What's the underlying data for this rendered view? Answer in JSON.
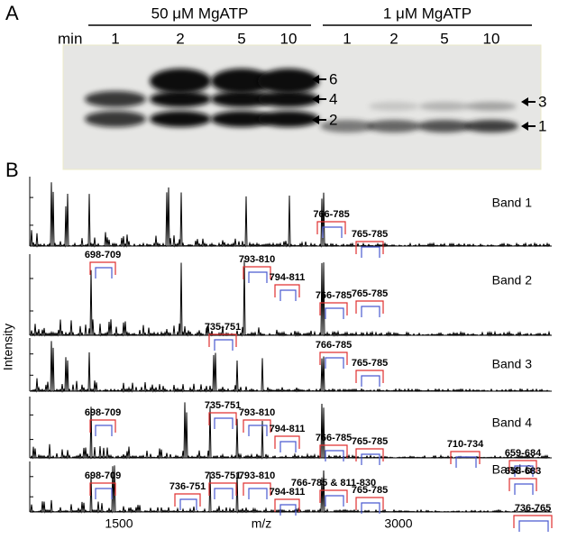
{
  "panel_a": {
    "label": "A",
    "time_label": "min",
    "groups": [
      {
        "label": "50 μM MgATP",
        "lanes": [
          "1",
          "2",
          "5",
          "10"
        ]
      },
      {
        "label": "1 μM MgATP",
        "lanes": [
          "1",
          "2",
          "5",
          "10"
        ]
      }
    ],
    "band_markers": [
      "6",
      "4",
      "2",
      "3",
      "1"
    ]
  },
  "panel_b": {
    "label": "B",
    "y_label": "Intensity",
    "x_label": "m/z",
    "x_ticks": [
      "1500",
      "3000"
    ],
    "spectra": [
      {
        "name": "Band 1",
        "annotations": [
          "766-785",
          "765-785"
        ]
      },
      {
        "name": "Band 2",
        "annotations": [
          "698-709",
          "793-810",
          "794-811",
          "766-785",
          "765-785"
        ]
      },
      {
        "name": "Band 3",
        "annotations": [
          "735-751",
          "766-785",
          "765-785"
        ]
      },
      {
        "name": "Band 4",
        "annotations": [
          "698-709",
          "735-751",
          "793-810",
          "794-811",
          "766-785",
          "765-785",
          "710-734"
        ]
      },
      {
        "name": "Band 6",
        "annotations": [
          "698-709",
          "735-751",
          "793-810",
          "736-751",
          "794-811",
          "766-785 & 811-830",
          "765-785",
          "659-684",
          "658-683",
          "736-765"
        ]
      }
    ]
  }
}
